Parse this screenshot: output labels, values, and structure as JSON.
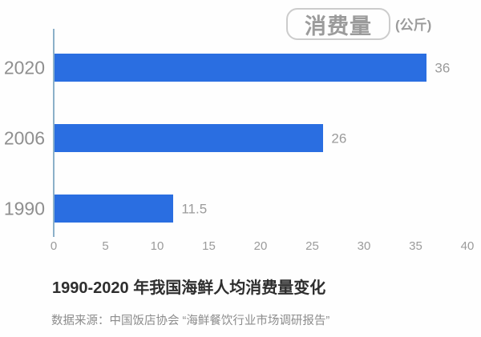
{
  "header": {
    "badge_label": "消费量",
    "unit_label": "(公斤)"
  },
  "chart_data": {
    "type": "bar",
    "orientation": "horizontal",
    "title": "1990-2020 年我国海鲜人均消费量变化",
    "unit": "公斤",
    "categories": [
      "2020",
      "2006",
      "1990"
    ],
    "values": [
      36,
      26,
      11.5
    ],
    "value_labels": [
      "36",
      "26",
      "11.5"
    ],
    "xlim": [
      0,
      40
    ],
    "xticks": [
      "0",
      "5",
      "10",
      "15",
      "20",
      "25",
      "30",
      "35",
      "40"
    ],
    "grid": false,
    "legend_position": "top-right",
    "bar_color": "#2a6ee1",
    "axis_color": "#8cb0c9",
    "label_color": "#8f8f8f"
  },
  "footer": {
    "title": "1990-2020 年我国海鲜人均消费量变化",
    "source": "数据来源：中国饭店协会 “海鲜餐饮行业市场调研报告”"
  }
}
